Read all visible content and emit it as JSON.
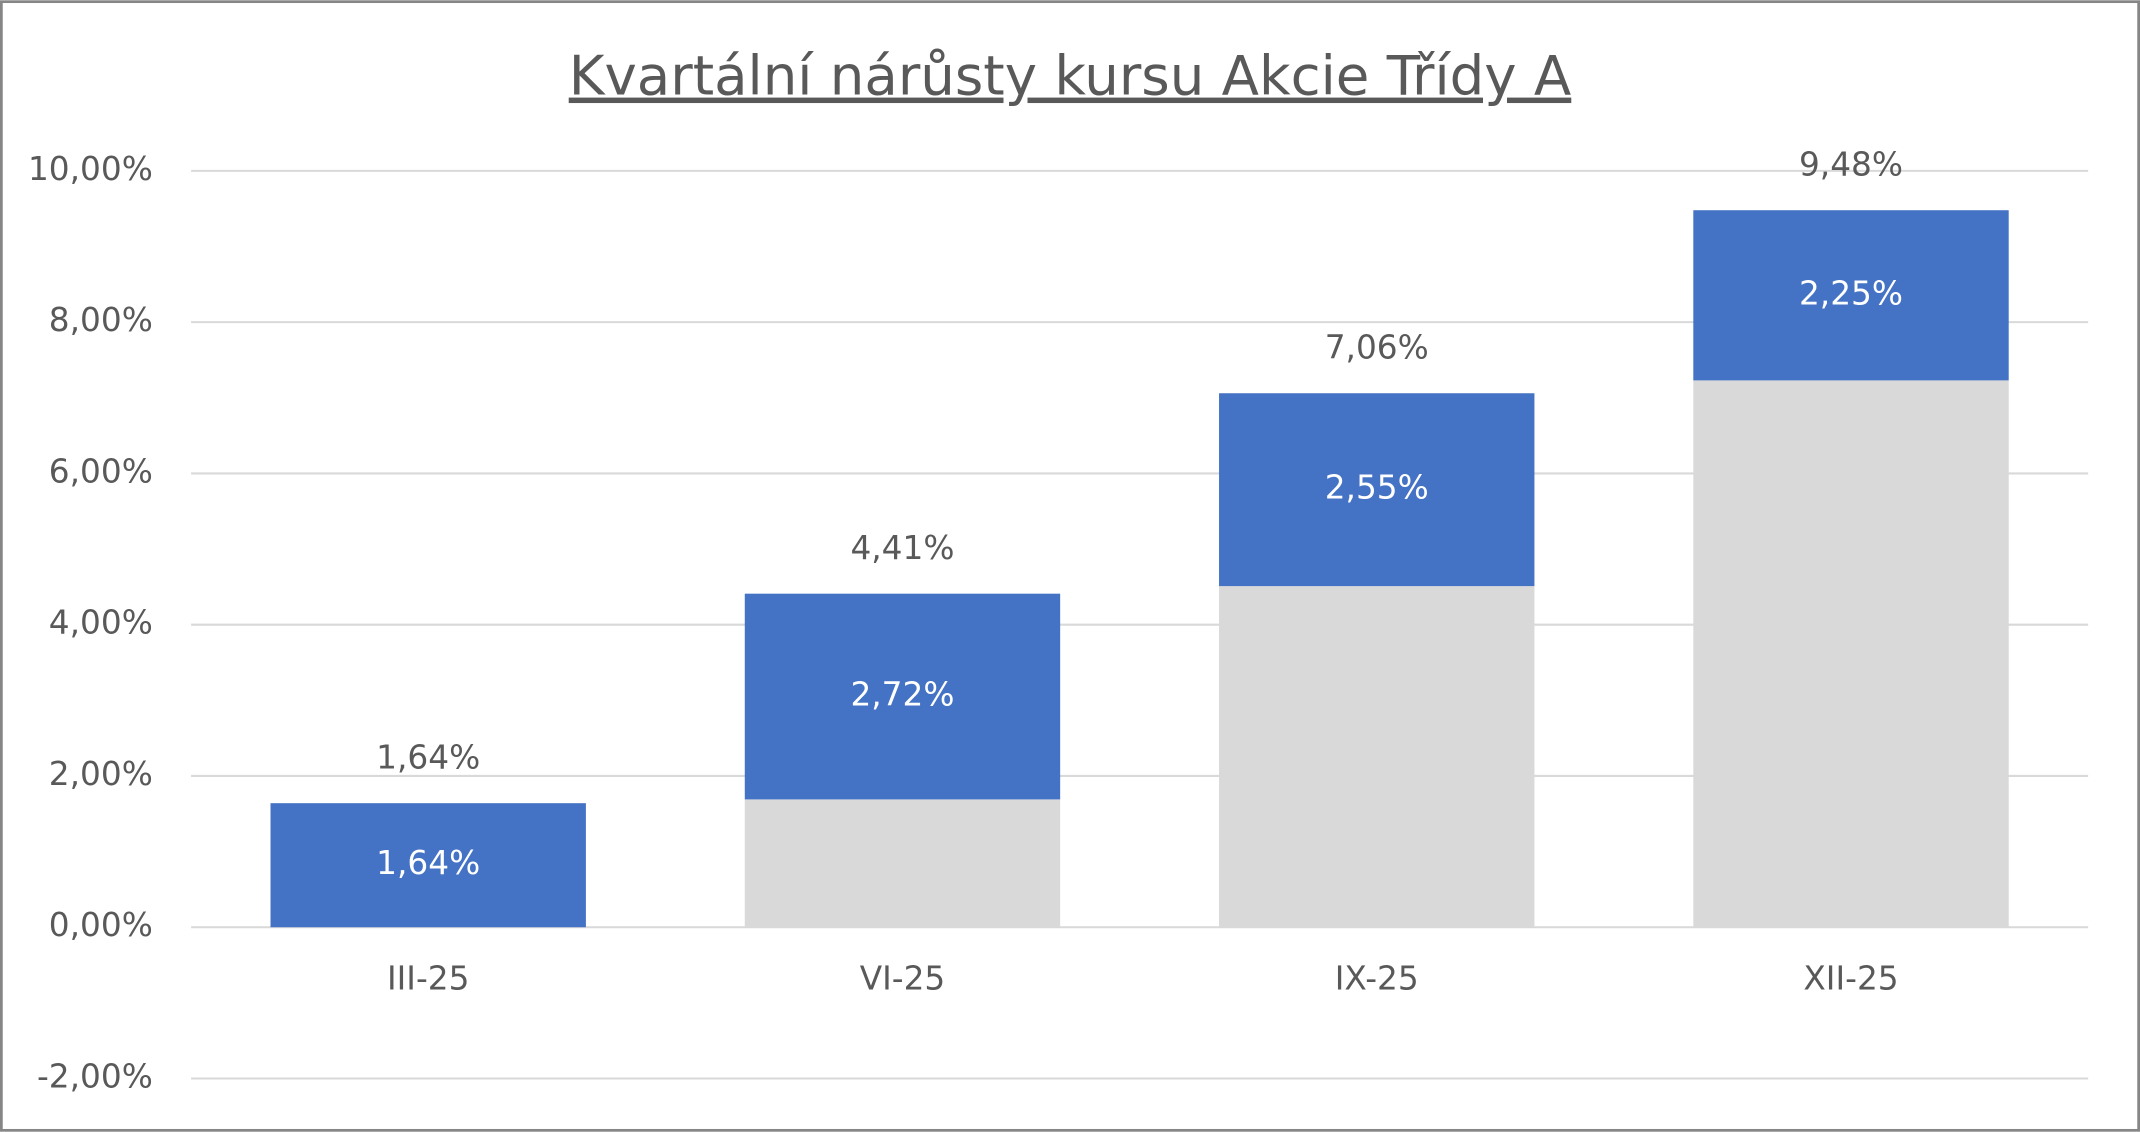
{
  "chart_data": {
    "type": "stacked_bar",
    "title": "Kvartální nárůsty kursu Akcie Třídy A",
    "categories": [
      "III-25",
      "VI-25",
      "IX-25",
      "XII-25"
    ],
    "series": [
      {
        "color": "#d9d9d9",
        "values": [
          0,
          1.69,
          4.51,
          7.23
        ]
      },
      {
        "color": "#4472c4",
        "values": [
          1.64,
          2.72,
          2.55,
          2.25
        ],
        "value_labels": [
          "1,64%",
          "2,72%",
          "2,55%",
          "2,25%"
        ]
      }
    ],
    "totals": {
      "values": [
        1.64,
        4.41,
        7.06,
        9.48
      ],
      "value_labels": [
        "1,64%",
        "4,41%",
        "7,06%",
        "9,48%"
      ]
    },
    "ylim": [
      -2,
      10
    ],
    "yticks": [
      {
        "value": -2,
        "label": "-2,00%"
      },
      {
        "value": 0,
        "label": "0,00%"
      },
      {
        "value": 2,
        "label": "2,00%"
      },
      {
        "value": 4,
        "label": "4,00%"
      },
      {
        "value": 6,
        "label": "6,00%"
      },
      {
        "value": 8,
        "label": "8,00%"
      },
      {
        "value": 10,
        "label": "10,00%"
      }
    ],
    "grid": true
  }
}
